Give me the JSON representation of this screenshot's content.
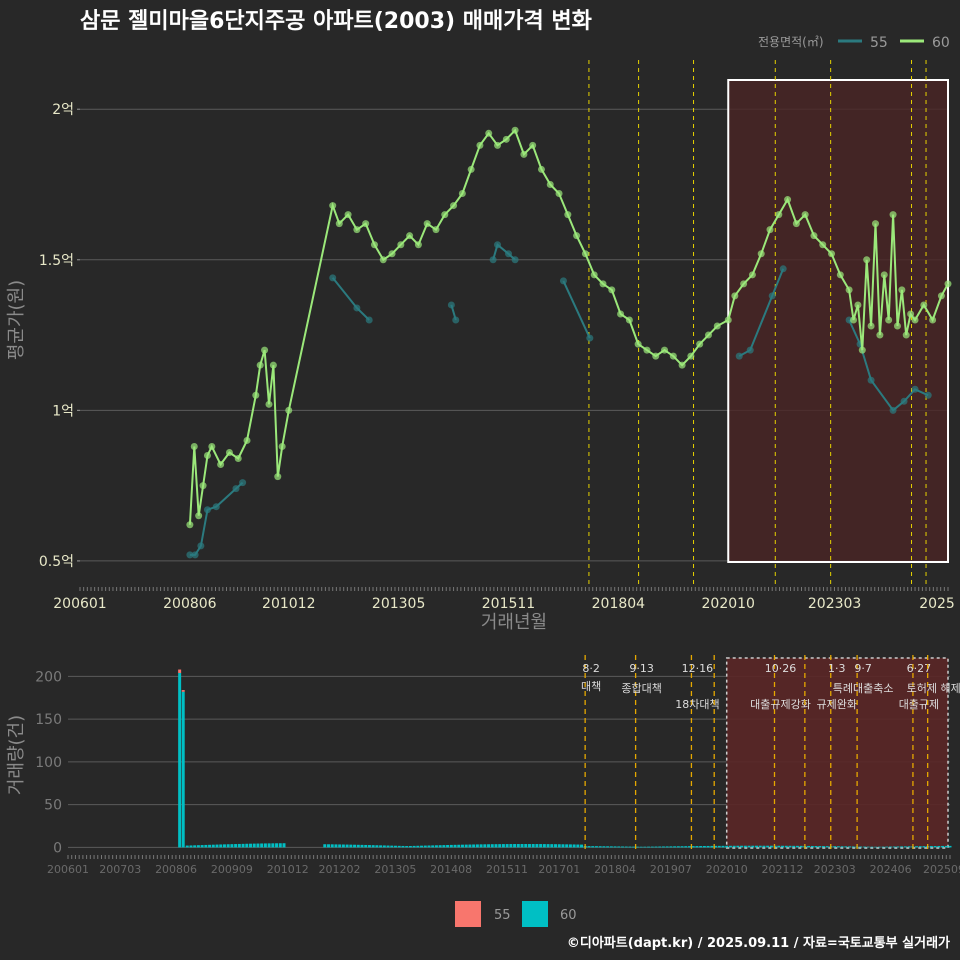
{
  "title": "삼문 젤미마을6단지주공 아파트(2003) 매매가격 변화",
  "footer": "©디아파트(dapt.kr) / 2025.09.11 / 자료=국토교통부 실거래가",
  "colors": {
    "background": "#282828",
    "grid": "#5a5a5a",
    "series55_line": "#2b7a7f",
    "series60_line": "#9be87a",
    "bar55": "#f8766d",
    "bar60": "#00bfc4",
    "policy_line": "#e6d200",
    "highlight_fill": "#4a2424",
    "title": "#ffffff",
    "axis_text": "#e8e8c8"
  },
  "chart_data": [
    {
      "type": "line",
      "name": "price",
      "title": "삼문 젤미마을6단지주공 아파트(2003) 매매가격 변화",
      "xlabel": "거래년월",
      "ylabel": "평균가(원)",
      "xlim": [
        2006.0,
        2025.75
      ],
      "ylim": [
        0.42,
        2.18
      ],
      "y_ticks": [
        {
          "v": 0.5,
          "label": "0.5억"
        },
        {
          "v": 1.0,
          "label": "1억"
        },
        {
          "v": 1.5,
          "label": "1.5억"
        },
        {
          "v": 2.0,
          "label": "2억"
        }
      ],
      "x_ticks": [
        {
          "v": 2006.0,
          "label": "200601"
        },
        {
          "v": 2008.5,
          "label": "200806"
        },
        {
          "v": 2010.75,
          "label": "201012"
        },
        {
          "v": 2013.25,
          "label": "201305"
        },
        {
          "v": 2015.75,
          "label": "201511"
        },
        {
          "v": 2018.25,
          "label": "201804"
        },
        {
          "v": 2020.75,
          "label": "202010"
        },
        {
          "v": 2023.17,
          "label": "202303"
        },
        {
          "v": 2025.5,
          "label": "2025"
        }
      ],
      "legend_title": "전용면적(㎡)",
      "legend": [
        "55",
        "60"
      ],
      "legend_position": "top-right",
      "policy_lines": [
        2017.58,
        2018.71,
        2019.96,
        2021.82,
        2023.08,
        2024.92,
        2025.25
      ],
      "highlight_range": [
        2020.75,
        2025.75
      ],
      "series": [
        {
          "name": "55",
          "points": [
            [
              2008.5,
              0.52
            ],
            [
              2008.62,
              0.52
            ],
            [
              2008.75,
              0.55
            ],
            [
              2008.9,
              0.67
            ],
            [
              2009.1,
              0.68
            ],
            [
              2009.55,
              0.74
            ],
            [
              2009.7,
              0.76
            ],
            [
              2011.75,
              1.44
            ],
            [
              2012.3,
              1.34
            ],
            [
              2012.58,
              1.3
            ],
            [
              2014.45,
              1.35
            ],
            [
              2014.55,
              1.3
            ],
            [
              2015.4,
              1.5
            ],
            [
              2015.5,
              1.55
            ],
            [
              2015.75,
              1.52
            ],
            [
              2015.9,
              1.5
            ],
            [
              2017.0,
              1.43
            ],
            [
              2017.6,
              1.24
            ],
            [
              2021.0,
              1.18
            ],
            [
              2021.25,
              1.2
            ],
            [
              2021.75,
              1.38
            ],
            [
              2022.0,
              1.47
            ],
            [
              2023.5,
              1.3
            ],
            [
              2023.75,
              1.22
            ],
            [
              2024.0,
              1.1
            ],
            [
              2024.5,
              1.0
            ],
            [
              2024.75,
              1.03
            ],
            [
              2025.0,
              1.07
            ],
            [
              2025.3,
              1.05
            ]
          ]
        },
        {
          "name": "60",
          "points": [
            [
              2008.5,
              0.62
            ],
            [
              2008.6,
              0.88
            ],
            [
              2008.7,
              0.65
            ],
            [
              2008.8,
              0.75
            ],
            [
              2008.9,
              0.85
            ],
            [
              2009.0,
              0.88
            ],
            [
              2009.2,
              0.82
            ],
            [
              2009.4,
              0.86
            ],
            [
              2009.6,
              0.84
            ],
            [
              2009.8,
              0.9
            ],
            [
              2010.0,
              1.05
            ],
            [
              2010.1,
              1.15
            ],
            [
              2010.2,
              1.2
            ],
            [
              2010.3,
              1.02
            ],
            [
              2010.4,
              1.15
            ],
            [
              2010.5,
              0.78
            ],
            [
              2010.6,
              0.88
            ],
            [
              2010.75,
              1.0
            ],
            [
              2011.75,
              1.68
            ],
            [
              2011.9,
              1.62
            ],
            [
              2012.1,
              1.65
            ],
            [
              2012.3,
              1.6
            ],
            [
              2012.5,
              1.62
            ],
            [
              2012.7,
              1.55
            ],
            [
              2012.9,
              1.5
            ],
            [
              2013.1,
              1.52
            ],
            [
              2013.3,
              1.55
            ],
            [
              2013.5,
              1.58
            ],
            [
              2013.7,
              1.55
            ],
            [
              2013.9,
              1.62
            ],
            [
              2014.1,
              1.6
            ],
            [
              2014.3,
              1.65
            ],
            [
              2014.5,
              1.68
            ],
            [
              2014.7,
              1.72
            ],
            [
              2014.9,
              1.8
            ],
            [
              2015.1,
              1.88
            ],
            [
              2015.3,
              1.92
            ],
            [
              2015.5,
              1.88
            ],
            [
              2015.7,
              1.9
            ],
            [
              2015.9,
              1.93
            ],
            [
              2016.1,
              1.85
            ],
            [
              2016.3,
              1.88
            ],
            [
              2016.5,
              1.8
            ],
            [
              2016.7,
              1.75
            ],
            [
              2016.9,
              1.72
            ],
            [
              2017.1,
              1.65
            ],
            [
              2017.3,
              1.58
            ],
            [
              2017.5,
              1.52
            ],
            [
              2017.7,
              1.45
            ],
            [
              2017.9,
              1.42
            ],
            [
              2018.1,
              1.4
            ],
            [
              2018.3,
              1.32
            ],
            [
              2018.5,
              1.3
            ],
            [
              2018.7,
              1.22
            ],
            [
              2018.9,
              1.2
            ],
            [
              2019.1,
              1.18
            ],
            [
              2019.3,
              1.2
            ],
            [
              2019.5,
              1.18
            ],
            [
              2019.7,
              1.15
            ],
            [
              2019.9,
              1.18
            ],
            [
              2020.1,
              1.22
            ],
            [
              2020.3,
              1.25
            ],
            [
              2020.5,
              1.28
            ],
            [
              2020.75,
              1.3
            ],
            [
              2020.9,
              1.38
            ],
            [
              2021.1,
              1.42
            ],
            [
              2021.3,
              1.45
            ],
            [
              2021.5,
              1.52
            ],
            [
              2021.7,
              1.6
            ],
            [
              2021.9,
              1.65
            ],
            [
              2022.1,
              1.7
            ],
            [
              2022.3,
              1.62
            ],
            [
              2022.5,
              1.65
            ],
            [
              2022.7,
              1.58
            ],
            [
              2022.9,
              1.55
            ],
            [
              2023.1,
              1.52
            ],
            [
              2023.3,
              1.45
            ],
            [
              2023.5,
              1.4
            ],
            [
              2023.6,
              1.3
            ],
            [
              2023.7,
              1.35
            ],
            [
              2023.8,
              1.2
            ],
            [
              2023.9,
              1.5
            ],
            [
              2024.0,
              1.28
            ],
            [
              2024.1,
              1.62
            ],
            [
              2024.2,
              1.25
            ],
            [
              2024.3,
              1.45
            ],
            [
              2024.4,
              1.3
            ],
            [
              2024.5,
              1.65
            ],
            [
              2024.6,
              1.28
            ],
            [
              2024.7,
              1.4
            ],
            [
              2024.8,
              1.25
            ],
            [
              2024.9,
              1.32
            ],
            [
              2025.0,
              1.3
            ],
            [
              2025.2,
              1.35
            ],
            [
              2025.4,
              1.3
            ],
            [
              2025.6,
              1.38
            ],
            [
              2025.75,
              1.42
            ]
          ]
        }
      ]
    },
    {
      "type": "bar",
      "name": "volume",
      "xlabel": "",
      "ylabel": "거래량(건)",
      "xlim": [
        2006.0,
        2025.75
      ],
      "ylim": [
        -3,
        225
      ],
      "y_ticks": [
        0,
        50,
        100,
        150,
        200
      ],
      "x_ticks": [
        {
          "v": 2006.0,
          "label": "200601"
        },
        {
          "v": 2007.17,
          "label": "200703"
        },
        {
          "v": 2008.42,
          "label": "200806"
        },
        {
          "v": 2009.67,
          "label": "200909"
        },
        {
          "v": 2010.92,
          "label": "201012"
        },
        {
          "v": 2012.08,
          "label": "201202"
        },
        {
          "v": 2013.33,
          "label": "201305"
        },
        {
          "v": 2014.58,
          "label": "201408"
        },
        {
          "v": 2015.83,
          "label": "201511"
        },
        {
          "v": 2017.0,
          "label": "201701"
        },
        {
          "v": 2018.25,
          "label": "201804"
        },
        {
          "v": 2019.5,
          "label": "201907"
        },
        {
          "v": 2020.75,
          "label": "202010"
        },
        {
          "v": 2022.0,
          "label": "202112"
        },
        {
          "v": 2023.17,
          "label": "202303"
        },
        {
          "v": 2024.42,
          "label": "202406"
        },
        {
          "v": 2025.67,
          "label": "202509"
        }
      ],
      "legend": [
        "55",
        "60"
      ],
      "legend_position": "bottom",
      "highlight_range": [
        2020.75,
        2025.75
      ],
      "spikes": [
        {
          "x": 2008.5,
          "s55": 4,
          "s60": 204
        },
        {
          "x": 2008.58,
          "s55": 2,
          "s60": 182
        }
      ],
      "small_ranges": [
        {
          "from": 2008.67,
          "to": 2010.9,
          "level": 5
        },
        {
          "from": 2011.75,
          "to": 2017.5,
          "level": 4
        },
        {
          "from": 2017.5,
          "to": 2025.75,
          "level": 2
        }
      ],
      "policies": [
        {
          "x": 2017.58,
          "date": "8·2",
          "label": "대책"
        },
        {
          "x": 2018.71,
          "date": "9·13",
          "label": "종합대책"
        },
        {
          "x": 2019.96,
          "date": "12·16",
          "label": "18차대책"
        },
        {
          "x": 2020.47,
          "date": "",
          "label": ""
        },
        {
          "x": 2021.82,
          "date": "10·26",
          "label": "대출규제강화"
        },
        {
          "x": 2022.5,
          "date": "",
          "label": ""
        },
        {
          "x": 2023.08,
          "date": "1·3",
          "label": "규제완화"
        },
        {
          "x": 2023.67,
          "date": "9·7",
          "label": "특례대출축소"
        },
        {
          "x": 2024.92,
          "date": "6·27",
          "label": "대출규제"
        },
        {
          "x": 2025.25,
          "date": "",
          "label": "토허제 해제"
        }
      ]
    }
  ]
}
